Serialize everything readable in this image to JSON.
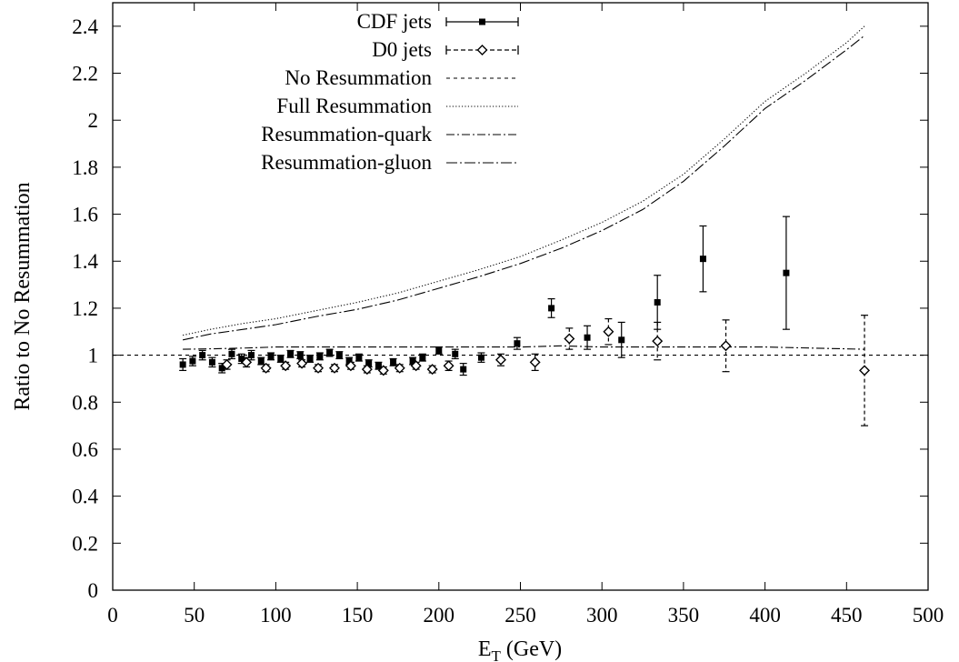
{
  "chart_data": {
    "type": "scatter",
    "xlabel_main": "E",
    "xlabel_sub": "T",
    "xlabel_unit": " (GeV)",
    "ylabel": "Ratio to No Resummation",
    "xlim": [
      0,
      500
    ],
    "ylim": [
      0,
      2.5
    ],
    "xticks": [
      "0",
      "50",
      "100",
      "150",
      "200",
      "250",
      "300",
      "350",
      "400",
      "450",
      "500"
    ],
    "yticks": [
      "0",
      "0.2",
      "0.4",
      "0.6",
      "0.8",
      "1",
      "1.2",
      "1.4",
      "1.6",
      "1.8",
      "2",
      "2.2",
      "2.4"
    ],
    "grid": false,
    "legend_position": "top-center",
    "series": [
      {
        "name": "CDF jets",
        "style": "points-square",
        "points": [
          {
            "x": 43,
            "y": 0.96,
            "err": 0.025
          },
          {
            "x": 49,
            "y": 0.975,
            "err": 0.02
          },
          {
            "x": 55,
            "y": 1.0,
            "err": 0.02
          },
          {
            "x": 61,
            "y": 0.97,
            "err": 0.02
          },
          {
            "x": 67,
            "y": 0.945,
            "err": 0.02
          },
          {
            "x": 73,
            "y": 1.005,
            "err": 0.02
          },
          {
            "x": 79,
            "y": 0.985,
            "err": 0.02
          },
          {
            "x": 85,
            "y": 1.0,
            "err": 0.02
          },
          {
            "x": 91,
            "y": 0.975,
            "err": 0.015
          },
          {
            "x": 97,
            "y": 0.995,
            "err": 0.015
          },
          {
            "x": 103,
            "y": 0.985,
            "err": 0.015
          },
          {
            "x": 109,
            "y": 1.005,
            "err": 0.015
          },
          {
            "x": 115,
            "y": 1.0,
            "err": 0.015
          },
          {
            "x": 121,
            "y": 0.985,
            "err": 0.015
          },
          {
            "x": 127,
            "y": 0.995,
            "err": 0.015
          },
          {
            "x": 133,
            "y": 1.01,
            "err": 0.015
          },
          {
            "x": 139,
            "y": 1.0,
            "err": 0.015
          },
          {
            "x": 145,
            "y": 0.975,
            "err": 0.015
          },
          {
            "x": 151,
            "y": 0.99,
            "err": 0.015
          },
          {
            "x": 157,
            "y": 0.965,
            "err": 0.015
          },
          {
            "x": 163,
            "y": 0.955,
            "err": 0.015
          },
          {
            "x": 172,
            "y": 0.97,
            "err": 0.015
          },
          {
            "x": 184,
            "y": 0.975,
            "err": 0.015
          },
          {
            "x": 190,
            "y": 0.99,
            "err": 0.015
          },
          {
            "x": 200,
            "y": 1.02,
            "err": 0.015
          },
          {
            "x": 210,
            "y": 1.005,
            "err": 0.02
          },
          {
            "x": 215,
            "y": 0.94,
            "err": 0.025
          },
          {
            "x": 226,
            "y": 0.99,
            "err": 0.02
          },
          {
            "x": 248,
            "y": 1.05,
            "err": 0.025
          },
          {
            "x": 269,
            "y": 1.2,
            "err": 0.04
          },
          {
            "x": 291,
            "y": 1.075,
            "err": 0.05
          },
          {
            "x": 312,
            "y": 1.065,
            "err": 0.075
          },
          {
            "x": 334,
            "y": 1.225,
            "err": 0.115
          },
          {
            "x": 362,
            "y": 1.41,
            "err": 0.14
          },
          {
            "x": 413,
            "y": 1.35,
            "err": 0.24
          }
        ]
      },
      {
        "name": "D0 jets",
        "style": "points-diamond",
        "points": [
          {
            "x": 70,
            "y": 0.96,
            "err": 0.02
          },
          {
            "x": 82,
            "y": 0.97,
            "err": 0.02
          },
          {
            "x": 94,
            "y": 0.945,
            "err": 0.015
          },
          {
            "x": 106,
            "y": 0.955,
            "err": 0.015
          },
          {
            "x": 116,
            "y": 0.965,
            "err": 0.015
          },
          {
            "x": 126,
            "y": 0.945,
            "err": 0.015
          },
          {
            "x": 136,
            "y": 0.945,
            "err": 0.015
          },
          {
            "x": 146,
            "y": 0.955,
            "err": 0.015
          },
          {
            "x": 156,
            "y": 0.94,
            "err": 0.015
          },
          {
            "x": 166,
            "y": 0.935,
            "err": 0.015
          },
          {
            "x": 176,
            "y": 0.945,
            "err": 0.015
          },
          {
            "x": 186,
            "y": 0.955,
            "err": 0.015
          },
          {
            "x": 196,
            "y": 0.94,
            "err": 0.015
          },
          {
            "x": 206,
            "y": 0.955,
            "err": 0.02
          },
          {
            "x": 238,
            "y": 0.98,
            "err": 0.025
          },
          {
            "x": 259,
            "y": 0.97,
            "err": 0.035
          },
          {
            "x": 280,
            "y": 1.07,
            "err": 0.045
          },
          {
            "x": 304,
            "y": 1.1,
            "err": 0.055
          },
          {
            "x": 334,
            "y": 1.06,
            "err": 0.08
          },
          {
            "x": 376,
            "y": 1.04,
            "err": 0.11
          },
          {
            "x": 461,
            "y": 0.935,
            "err": 0.235
          }
        ]
      },
      {
        "name": "No Resummation",
        "style": "dashed",
        "points": [
          {
            "x": 0,
            "y": 1.0
          },
          {
            "x": 500,
            "y": 1.0
          }
        ]
      },
      {
        "name": "Full Resummation",
        "style": "dotted",
        "points": [
          {
            "x": 43,
            "y": 1.085
          },
          {
            "x": 60,
            "y": 1.11
          },
          {
            "x": 80,
            "y": 1.135
          },
          {
            "x": 100,
            "y": 1.155
          },
          {
            "x": 125,
            "y": 1.19
          },
          {
            "x": 150,
            "y": 1.225
          },
          {
            "x": 175,
            "y": 1.265
          },
          {
            "x": 200,
            "y": 1.315
          },
          {
            "x": 225,
            "y": 1.365
          },
          {
            "x": 250,
            "y": 1.42
          },
          {
            "x": 275,
            "y": 1.49
          },
          {
            "x": 300,
            "y": 1.565
          },
          {
            "x": 325,
            "y": 1.655
          },
          {
            "x": 350,
            "y": 1.77
          },
          {
            "x": 375,
            "y": 1.92
          },
          {
            "x": 400,
            "y": 2.08
          },
          {
            "x": 425,
            "y": 2.2
          },
          {
            "x": 450,
            "y": 2.33
          },
          {
            "x": 461,
            "y": 2.4
          }
        ]
      },
      {
        "name": "Resummation-quark",
        "style": "dash-dot",
        "points": [
          {
            "x": 43,
            "y": 1.025
          },
          {
            "x": 60,
            "y": 1.027
          },
          {
            "x": 80,
            "y": 1.03
          },
          {
            "x": 100,
            "y": 1.035
          },
          {
            "x": 150,
            "y": 1.035
          },
          {
            "x": 200,
            "y": 1.035
          },
          {
            "x": 250,
            "y": 1.035
          },
          {
            "x": 275,
            "y": 1.04
          },
          {
            "x": 300,
            "y": 1.035
          },
          {
            "x": 350,
            "y": 1.035
          },
          {
            "x": 400,
            "y": 1.035
          },
          {
            "x": 461,
            "y": 1.025
          }
        ]
      },
      {
        "name": "Resummation-gluon",
        "style": "dash-dot-long",
        "points": [
          {
            "x": 43,
            "y": 1.065
          },
          {
            "x": 60,
            "y": 1.09
          },
          {
            "x": 80,
            "y": 1.11
          },
          {
            "x": 100,
            "y": 1.13
          },
          {
            "x": 125,
            "y": 1.165
          },
          {
            "x": 150,
            "y": 1.195
          },
          {
            "x": 175,
            "y": 1.235
          },
          {
            "x": 200,
            "y": 1.285
          },
          {
            "x": 225,
            "y": 1.335
          },
          {
            "x": 250,
            "y": 1.39
          },
          {
            "x": 275,
            "y": 1.455
          },
          {
            "x": 300,
            "y": 1.53
          },
          {
            "x": 325,
            "y": 1.62
          },
          {
            "x": 350,
            "y": 1.74
          },
          {
            "x": 375,
            "y": 1.89
          },
          {
            "x": 400,
            "y": 2.05
          },
          {
            "x": 425,
            "y": 2.17
          },
          {
            "x": 450,
            "y": 2.3
          },
          {
            "x": 461,
            "y": 2.36
          }
        ]
      }
    ]
  }
}
